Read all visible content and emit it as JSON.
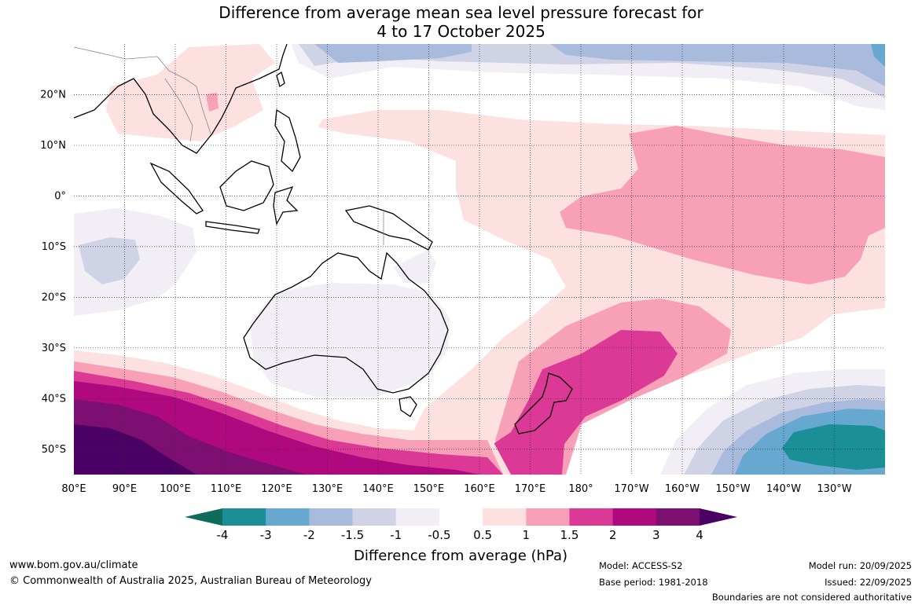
{
  "title": {
    "line1": "Difference from average mean sea level pressure forecast for",
    "line2": "4 to 17 October 2025"
  },
  "map": {
    "lon_labels": [
      "80°E",
      "90°E",
      "100°E",
      "110°E",
      "120°E",
      "130°E",
      "140°E",
      "150°E",
      "160°E",
      "170°E",
      "180°",
      "170°W",
      "160°W",
      "150°W",
      "140°W",
      "130°W"
    ],
    "lat_labels": [
      "20°N",
      "10°N",
      "0°",
      "10°S",
      "20°S",
      "30°S",
      "40°S",
      "50°S"
    ],
    "lon_range": [
      80,
      240
    ],
    "lat_range": [
      -55,
      30
    ]
  },
  "colorbar": {
    "ticks": [
      "-4",
      "-3",
      "-2",
      "-1.5",
      "-1",
      "-0.5",
      "0.5",
      "1",
      "1.5",
      "2",
      "3",
      "4"
    ],
    "colors": [
      "#0f6b5c",
      "#1a8f96",
      "#67a8d1",
      "#a8bbdc",
      "#d0d2e6",
      "#f1eff5",
      "#ffffff",
      "#fde0e0",
      "#f8a0b8",
      "#dc3895",
      "#b0087e",
      "#7d0f73",
      "#4a0163"
    ],
    "title": "Difference from average (hPa)"
  },
  "footer": {
    "website": "www.bom.gov.au/climate",
    "copyright": "© Commonwealth of Australia 2025, Australian Bureau of Meteorology",
    "model": "Model: ACCESS-S2",
    "base_period": "Base period: 1981-2018",
    "model_run": "Model run: 20/09/2025",
    "issued": "Issued: 22/09/2025",
    "disclaimer": "Boundaries are not considered authoritative"
  }
}
